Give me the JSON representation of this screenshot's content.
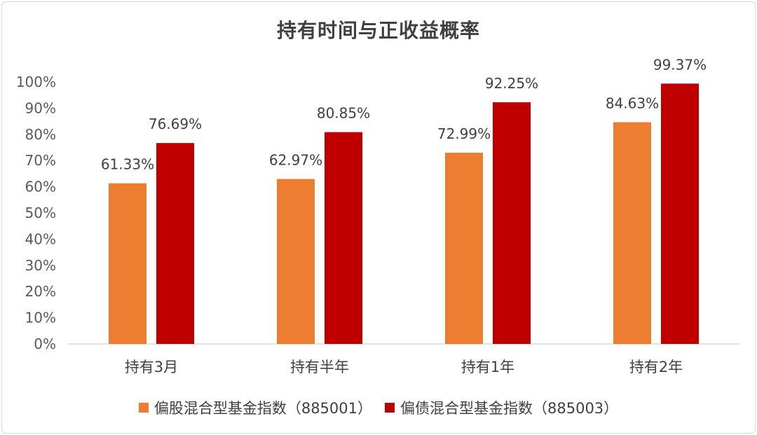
{
  "chart_data": {
    "type": "bar",
    "title": "持有时间与正收益概率",
    "categories": [
      "持有3月",
      "持有半年",
      "持有1年",
      "持有2年"
    ],
    "series": [
      {
        "name": "偏股混合型基金指数（885001）",
        "color": "#ed7d31",
        "values": [
          61.33,
          62.97,
          72.99,
          84.63
        ],
        "labels": [
          "61.33%",
          "62.97%",
          "72.99%",
          "84.63%"
        ]
      },
      {
        "name": "偏债混合型基金指数（885003）",
        "color": "#c00000",
        "values": [
          76.69,
          80.85,
          92.25,
          99.37
        ],
        "labels": [
          "76.69%",
          "80.85%",
          "92.25%",
          "99.37%"
        ]
      }
    ],
    "yticks": [
      "0%",
      "10%",
      "20%",
      "30%",
      "40%",
      "50%",
      "60%",
      "70%",
      "80%",
      "90%",
      "100%"
    ],
    "ylim": [
      0,
      100
    ],
    "grid": false,
    "legend_position": "bottom"
  }
}
